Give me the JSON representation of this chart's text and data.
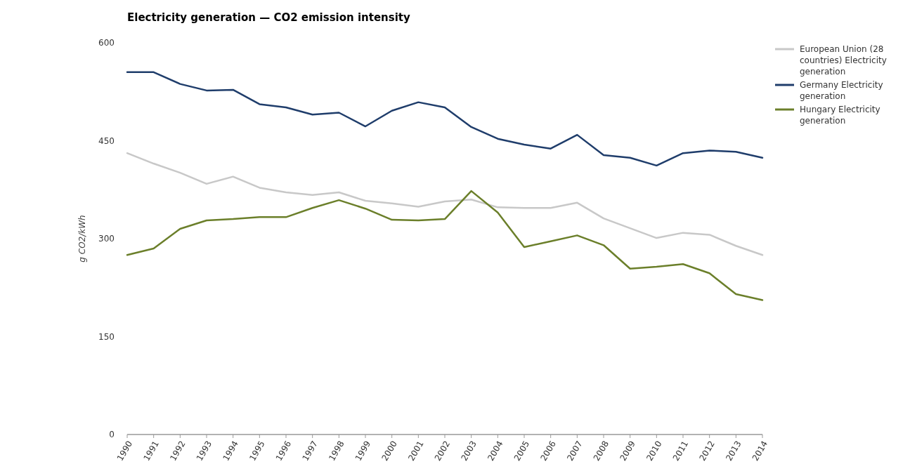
{
  "chart_data": {
    "type": "line",
    "title": "Electricity generation — CO2 emission intensity",
    "ylabel": "g CO2/kWh",
    "categories": [
      "1990",
      "1991",
      "1992",
      "1993",
      "1994",
      "1995",
      "1996",
      "1997",
      "1998",
      "1999",
      "2000",
      "2001",
      "2002",
      "2003",
      "2004",
      "2005",
      "2006",
      "2007",
      "2008",
      "2009",
      "2010",
      "2011",
      "2012",
      "2013",
      "2014"
    ],
    "ylim": [
      0,
      600
    ],
    "yticks": [
      0,
      150,
      300,
      450,
      600
    ],
    "grid": false,
    "legend": "top right",
    "marker": "none",
    "line_style": "solid",
    "series": [
      {
        "name": "European Union (28 countries) Electricity generation",
        "color": "#c8c8c8",
        "values": [
          431,
          415,
          401,
          384,
          395,
          378,
          371,
          367,
          371,
          358,
          354,
          349,
          357,
          360,
          348,
          347,
          347,
          355,
          331,
          316,
          301,
          309,
          306,
          289,
          275
        ]
      },
      {
        "name": "Germany Electricity generation",
        "color": "#1f3d6b",
        "values": [
          555,
          555,
          537,
          527,
          528,
          506,
          501,
          490,
          493,
          472,
          496,
          509,
          501,
          471,
          453,
          444,
          438,
          459,
          428,
          424,
          412,
          431,
          435,
          433,
          424
        ]
      },
      {
        "name": "Hungary Electricity generation",
        "color": "#6b7f2a",
        "values": [
          275,
          285,
          315,
          328,
          330,
          333,
          333,
          347,
          359,
          346,
          329,
          328,
          330,
          373,
          340,
          287,
          296,
          305,
          290,
          254,
          257,
          261,
          247,
          215,
          206
        ]
      }
    ]
  }
}
